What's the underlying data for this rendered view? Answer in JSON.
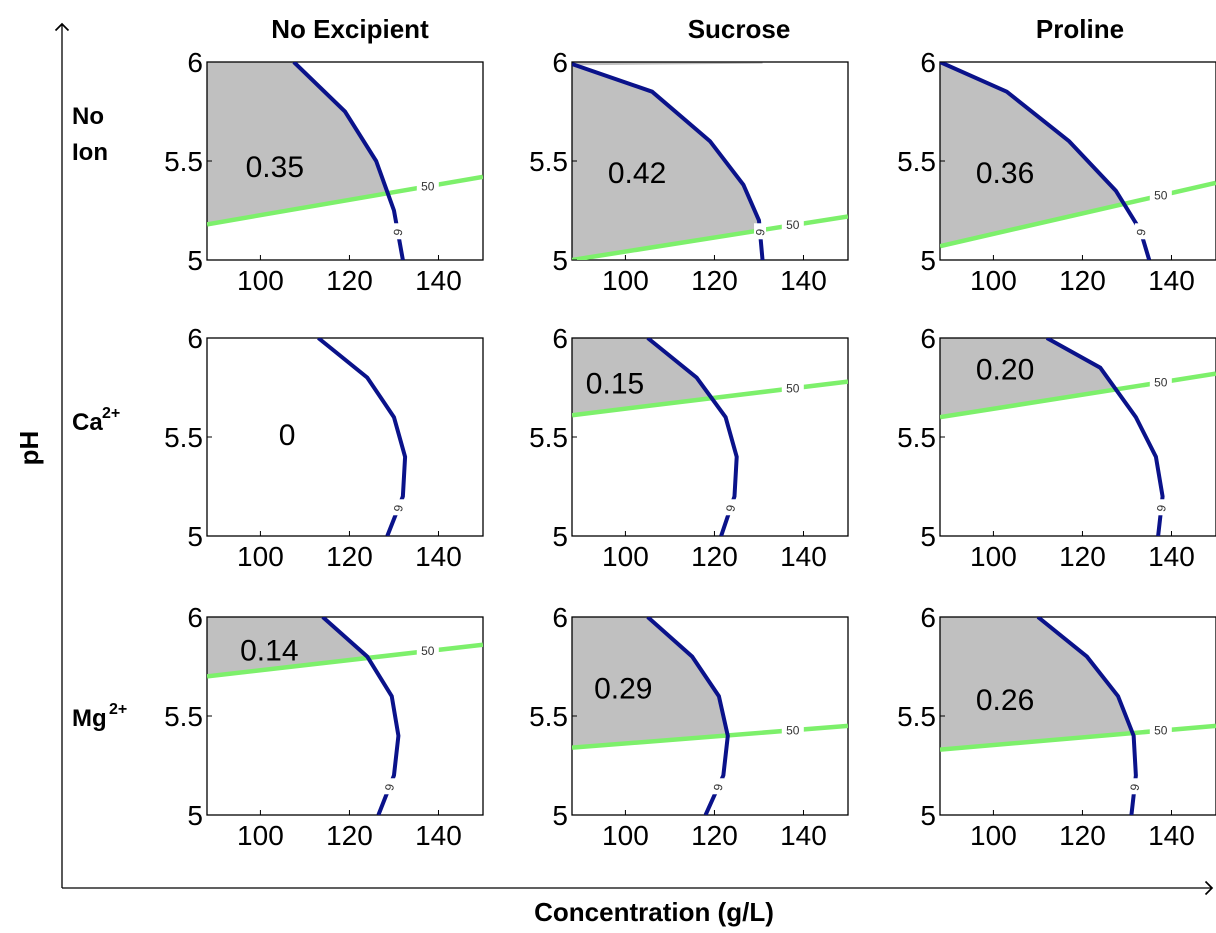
{
  "figure": {
    "y_axis_label": "pH",
    "x_axis_label": "Concentration (g/L)",
    "column_titles": [
      "No Excipient",
      "Sucrose",
      "Proline"
    ],
    "row_labels": [
      {
        "base": "No",
        "base2": "Ion",
        "sup": ""
      },
      {
        "base": "Ca",
        "base2": "",
        "sup": "2+"
      },
      {
        "base": "Mg",
        "base2": "",
        "sup": "2+"
      }
    ],
    "colors": {
      "region": "#c0c0c0",
      "contour_6": "#0a128a",
      "contour_50": "#7df06b",
      "axis": "#000000"
    }
  },
  "chart_data": [
    {
      "type": "contour",
      "row": "No Ion",
      "column": "No Excipient",
      "xlim": [
        88,
        150
      ],
      "ylim": [
        5,
        6
      ],
      "xticks": [
        100,
        120,
        140
      ],
      "yticks": [
        5,
        5.5,
        6
      ],
      "area_label": "0.35",
      "contours": [
        {
          "level": "6",
          "points": [
            [
              107.5,
              6
            ],
            [
              119,
              5.75
            ],
            [
              126,
              5.5
            ],
            [
              130,
              5.25
            ],
            [
              132,
              5
            ]
          ]
        },
        {
          "level": "50",
          "points": [
            [
              88,
              5.18
            ],
            [
              150,
              5.42
            ]
          ]
        }
      ]
    },
    {
      "type": "contour",
      "row": "No Ion",
      "column": "Sucrose",
      "xlim": [
        88,
        150
      ],
      "ylim": [
        5,
        6
      ],
      "xticks": [
        100,
        120,
        140
      ],
      "yticks": [
        5,
        5.5,
        6
      ],
      "area_label": "0.42",
      "contours": [
        {
          "level": "6",
          "points": [
            [
              88,
              5.99
            ],
            [
              106,
              5.85
            ],
            [
              119,
              5.6
            ],
            [
              126.5,
              5.38
            ],
            [
              130,
              5.2
            ],
            [
              130.8,
              5
            ]
          ]
        },
        {
          "level": "50",
          "points": [
            [
              88,
              5
            ],
            [
              150,
              5.22
            ]
          ]
        }
      ]
    },
    {
      "type": "contour",
      "row": "No Ion",
      "column": "Proline",
      "xlim": [
        88,
        150
      ],
      "ylim": [
        5,
        6
      ],
      "xticks": [
        100,
        120,
        140
      ],
      "yticks": [
        5,
        5.5,
        6
      ],
      "area_label": "0.36",
      "contours": [
        {
          "level": "6",
          "points": [
            [
              88,
              6
            ],
            [
              103,
              5.85
            ],
            [
              117,
              5.6
            ],
            [
              127.5,
              5.35
            ],
            [
              133,
              5.15
            ],
            [
              135,
              5
            ]
          ]
        },
        {
          "level": "50",
          "points": [
            [
              88,
              5.07
            ],
            [
              150,
              5.39
            ]
          ]
        }
      ]
    },
    {
      "type": "contour",
      "row": "Ca2+",
      "column": "No Excipient",
      "xlim": [
        88,
        150
      ],
      "ylim": [
        5,
        6
      ],
      "xticks": [
        100,
        120,
        140
      ],
      "yticks": [
        5,
        5.5,
        6
      ],
      "area_label": "0",
      "contours": [
        {
          "level": "6",
          "points": [
            [
              113,
              6
            ],
            [
              124,
              5.8
            ],
            [
              130,
              5.6
            ],
            [
              132.5,
              5.4
            ],
            [
              132,
              5.2
            ],
            [
              128.5,
              5
            ]
          ]
        }
      ]
    },
    {
      "type": "contour",
      "row": "Ca2+",
      "column": "Sucrose",
      "xlim": [
        88,
        150
      ],
      "ylim": [
        5,
        6
      ],
      "xticks": [
        100,
        120,
        140
      ],
      "yticks": [
        5,
        5.5,
        6
      ],
      "area_label": "0.15",
      "contours": [
        {
          "level": "6",
          "points": [
            [
              105,
              6
            ],
            [
              116,
              5.8
            ],
            [
              122.5,
              5.6
            ],
            [
              125,
              5.4
            ],
            [
              124.5,
              5.2
            ],
            [
              121.5,
              5
            ]
          ]
        },
        {
          "level": "50",
          "points": [
            [
              88,
              5.61
            ],
            [
              150,
              5.78
            ]
          ]
        }
      ]
    },
    {
      "type": "contour",
      "row": "Ca2+",
      "column": "Proline",
      "xlim": [
        88,
        150
      ],
      "ylim": [
        5,
        6
      ],
      "xticks": [
        100,
        120,
        140
      ],
      "yticks": [
        5,
        5.5,
        6
      ],
      "area_label": "0.20",
      "contours": [
        {
          "level": "6",
          "points": [
            [
              112,
              6
            ],
            [
              124,
              5.85
            ],
            [
              132,
              5.6
            ],
            [
              136.5,
              5.4
            ],
            [
              138,
              5.2
            ],
            [
              137,
              5
            ]
          ]
        },
        {
          "level": "50",
          "points": [
            [
              88,
              5.6
            ],
            [
              150,
              5.82
            ]
          ]
        }
      ]
    },
    {
      "type": "contour",
      "row": "Mg2+",
      "column": "No Excipient",
      "xlim": [
        88,
        150
      ],
      "ylim": [
        5,
        6
      ],
      "xticks": [
        100,
        120,
        140
      ],
      "yticks": [
        5,
        5.5,
        6
      ],
      "area_label": "0.14",
      "contours": [
        {
          "level": "6",
          "points": [
            [
              114,
              6
            ],
            [
              124,
              5.8
            ],
            [
              129.5,
              5.6
            ],
            [
              131,
              5.4
            ],
            [
              130,
              5.2
            ],
            [
              126.5,
              5
            ]
          ]
        },
        {
          "level": "50",
          "points": [
            [
              88,
              5.7
            ],
            [
              150,
              5.86
            ]
          ]
        }
      ]
    },
    {
      "type": "contour",
      "row": "Mg2+",
      "column": "Sucrose",
      "xlim": [
        88,
        150
      ],
      "ylim": [
        5,
        6
      ],
      "xticks": [
        100,
        120,
        140
      ],
      "yticks": [
        5,
        5.5,
        6
      ],
      "area_label": "0.29",
      "contours": [
        {
          "level": "6",
          "points": [
            [
              105,
              6
            ],
            [
              115,
              5.8
            ],
            [
              121,
              5.6
            ],
            [
              123,
              5.4
            ],
            [
              122,
              5.2
            ],
            [
              118,
              5
            ]
          ]
        },
        {
          "level": "50",
          "points": [
            [
              88,
              5.34
            ],
            [
              150,
              5.45
            ]
          ]
        }
      ]
    },
    {
      "type": "contour",
      "row": "Mg2+",
      "column": "Proline",
      "xlim": [
        88,
        150
      ],
      "ylim": [
        5,
        6
      ],
      "xticks": [
        100,
        120,
        140
      ],
      "yticks": [
        5,
        5.5,
        6
      ],
      "area_label": "0.26",
      "contours": [
        {
          "level": "6",
          "points": [
            [
              110,
              6
            ],
            [
              121,
              5.8
            ],
            [
              128,
              5.6
            ],
            [
              131.5,
              5.4
            ],
            [
              132,
              5.2
            ],
            [
              131,
              5
            ]
          ]
        },
        {
          "level": "50",
          "points": [
            [
              88,
              5.33
            ],
            [
              150,
              5.45
            ]
          ]
        }
      ]
    }
  ]
}
